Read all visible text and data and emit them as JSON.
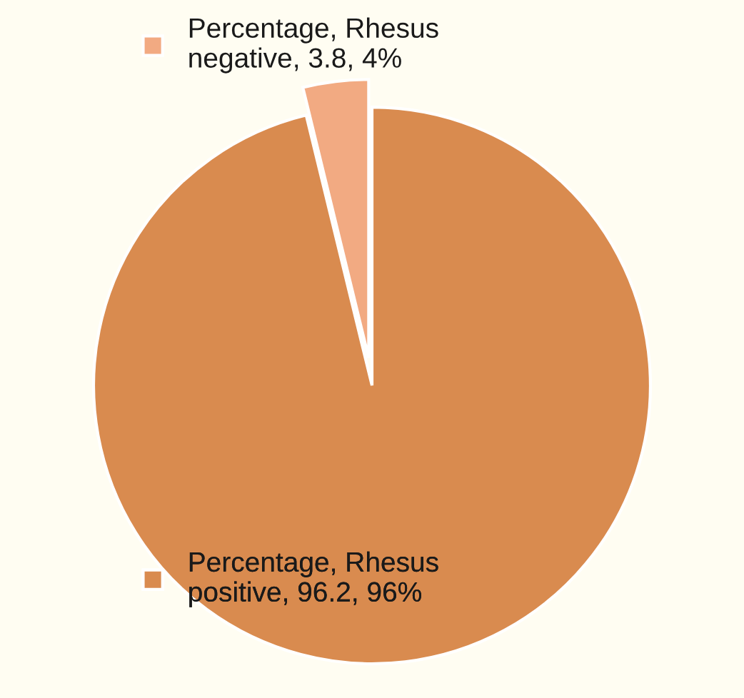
{
  "chart_data": {
    "type": "pie",
    "values": [
      3.8,
      96.2
    ],
    "categories": [
      "Percentage, Rhesus negative, 3.8, 4%",
      "Percentage, Rhesus positive, 96.2, 96%"
    ],
    "colors": [
      "#f2aa82",
      "#d98b4f"
    ],
    "legend": "left"
  }
}
